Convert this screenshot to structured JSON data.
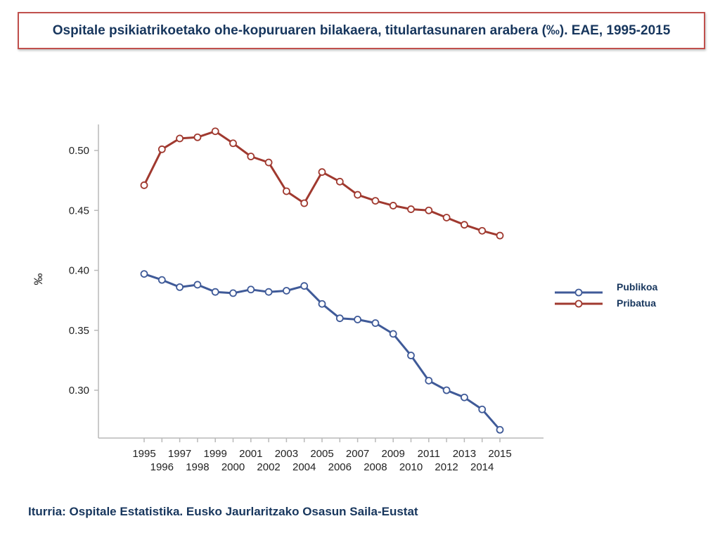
{
  "title": "Ospitale psikiatrikoetako ohe-kopuruaren bilakaera, titulartasunaren arabera (‰). EAE, 1995-2015",
  "source": "Iturria: Ospitale Estatistika. Eusko Jaurlaritzako Osasun Saila-Eustat",
  "chart_data": {
    "type": "line",
    "title": "",
    "xlabel": "",
    "ylabel": "‰",
    "x": [
      1995,
      1996,
      1997,
      1998,
      1999,
      2000,
      2001,
      2002,
      2003,
      2004,
      2005,
      2006,
      2007,
      2008,
      2009,
      2010,
      2011,
      2012,
      2013,
      2014,
      2015
    ],
    "ylim": [
      0.27,
      0.52
    ],
    "yticks": [
      0.3,
      0.35,
      0.4,
      0.45,
      0.5
    ],
    "ytick_labels": [
      "0.30",
      "0.35",
      "0.40",
      "0.45",
      "0.50"
    ],
    "marker": "open-circle",
    "grid": false,
    "legend_position": "right",
    "series": [
      {
        "name": "Publikoa",
        "color": "#3f5a98",
        "values": [
          0.397,
          0.392,
          0.386,
          0.388,
          0.382,
          0.381,
          0.384,
          0.382,
          0.383,
          0.387,
          0.372,
          0.36,
          0.359,
          0.356,
          0.347,
          0.329,
          0.308,
          0.3,
          0.294,
          0.284,
          0.267
        ]
      },
      {
        "name": "Pribatua",
        "color": "#a0392f",
        "values": [
          0.471,
          0.501,
          0.51,
          0.511,
          0.516,
          0.506,
          0.495,
          0.49,
          0.466,
          0.456,
          0.482,
          0.474,
          0.463,
          0.458,
          0.454,
          0.451,
          0.45,
          0.444,
          0.438,
          0.433,
          0.429
        ]
      }
    ]
  }
}
